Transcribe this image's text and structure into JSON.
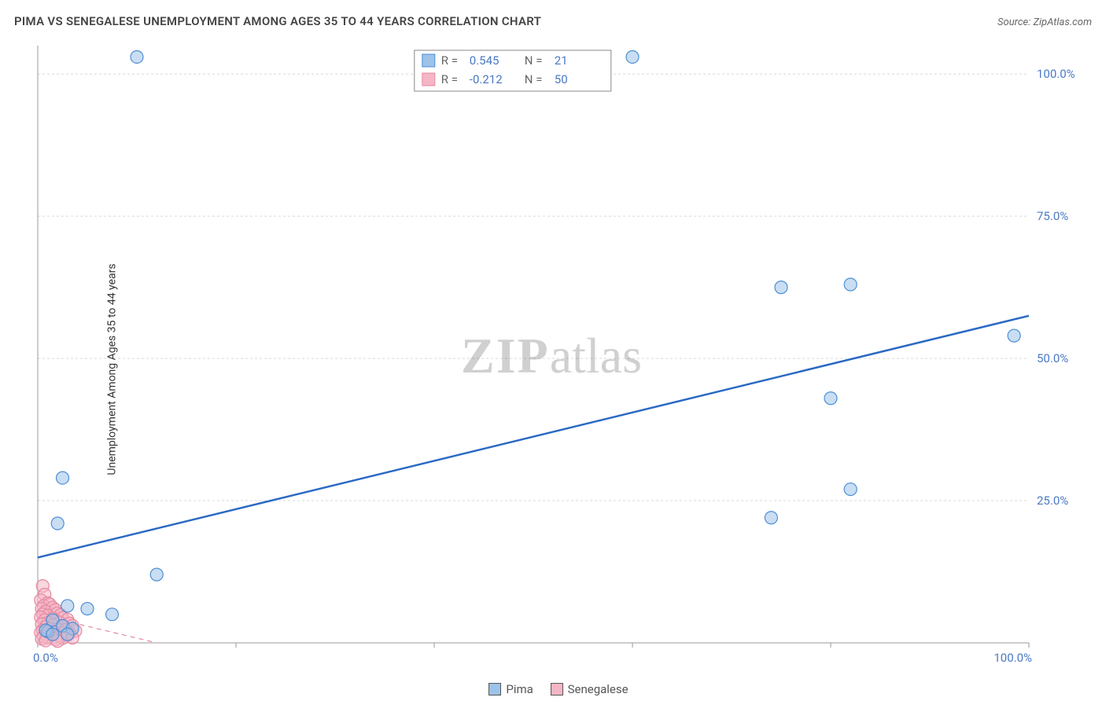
{
  "header": {
    "title": "PIMA VS SENEGALESE UNEMPLOYMENT AMONG AGES 35 TO 44 YEARS CORRELATION CHART",
    "source_prefix": "Source: ",
    "source_name": "ZipAtlas.com"
  },
  "watermark": {
    "zip": "ZIP",
    "rest": "atlas"
  },
  "chart": {
    "type": "scatter",
    "ylabel": "Unemployment Among Ages 35 to 44 years",
    "xlim": [
      0,
      100
    ],
    "ylim": [
      0,
      105
    ],
    "xtick_positions": [
      0,
      20,
      40,
      60,
      80,
      100
    ],
    "ytick_positions": [
      25,
      50,
      75,
      100
    ],
    "ytick_labels": [
      "25.0%",
      "50.0%",
      "75.0%",
      "100.0%"
    ],
    "xtick_labels_shown": {
      "0": "0.0%",
      "100": "100.0%"
    },
    "grid_color": "#d9d9d9",
    "background_color": "#ffffff",
    "marker_radius": 8,
    "series": [
      {
        "name": "Pima",
        "color_fill": "#9cc3e8",
        "color_stroke": "#4e8fd6",
        "R": "0.545",
        "N": "21",
        "points": [
          [
            10,
            103
          ],
          [
            60,
            103
          ],
          [
            75,
            62.5
          ],
          [
            82,
            63
          ],
          [
            98.5,
            54
          ],
          [
            80,
            43
          ],
          [
            82,
            27
          ],
          [
            74,
            22
          ],
          [
            2.5,
            29
          ],
          [
            2,
            21
          ],
          [
            12,
            12
          ],
          [
            3,
            6.5
          ],
          [
            5,
            6
          ],
          [
            7.5,
            5
          ],
          [
            1.5,
            4
          ],
          [
            2.5,
            3
          ],
          [
            3.5,
            2.5
          ],
          [
            1,
            2
          ],
          [
            0.8,
            2.2
          ],
          [
            1.5,
            1.5
          ],
          [
            3,
            1.5
          ]
        ],
        "regression": {
          "x1": 0,
          "y1": 15,
          "x2": 100,
          "y2": 57.5,
          "style": "solid",
          "width": 2.5
        }
      },
      {
        "name": "Senegalese",
        "color_fill": "#f4b6c5",
        "color_stroke": "#e688a1",
        "R": "-0.212",
        "N": "50",
        "points": [
          [
            0.5,
            10
          ],
          [
            0.7,
            8.5
          ],
          [
            0.3,
            7.5
          ],
          [
            1,
            7
          ],
          [
            0.6,
            6.5
          ],
          [
            1.2,
            6.8
          ],
          [
            0.4,
            6
          ],
          [
            1.5,
            6.2
          ],
          [
            0.8,
            5.5
          ],
          [
            1.8,
            5.8
          ],
          [
            0.5,
            5
          ],
          [
            2,
            5.2
          ],
          [
            1,
            4.8
          ],
          [
            2.3,
            4.9
          ],
          [
            0.3,
            4.5
          ],
          [
            1.5,
            4.3
          ],
          [
            2.5,
            4.4
          ],
          [
            0.7,
            4
          ],
          [
            1.8,
            3.9
          ],
          [
            3,
            4.1
          ],
          [
            1,
            3.5
          ],
          [
            2.2,
            3.6
          ],
          [
            0.4,
            3.3
          ],
          [
            3.2,
            3.4
          ],
          [
            1.5,
            3.1
          ],
          [
            2.6,
            2.9
          ],
          [
            0.8,
            2.8
          ],
          [
            3.5,
            3
          ],
          [
            1.2,
            2.5
          ],
          [
            2,
            2.4
          ],
          [
            0.5,
            2.2
          ],
          [
            2.8,
            2.3
          ],
          [
            1,
            2
          ],
          [
            3.8,
            2.1
          ],
          [
            0.3,
            1.8
          ],
          [
            1.7,
            1.9
          ],
          [
            2.5,
            1.7
          ],
          [
            0.9,
            1.5
          ],
          [
            3.2,
            1.6
          ],
          [
            1.4,
            1.3
          ],
          [
            2.2,
            1.2
          ],
          [
            0.6,
            1.1
          ],
          [
            3,
            1.3
          ],
          [
            1,
            0.9
          ],
          [
            2.5,
            0.8
          ],
          [
            0.4,
            0.7
          ],
          [
            1.8,
            0.6
          ],
          [
            3.5,
            0.9
          ],
          [
            0.8,
            0.4
          ],
          [
            2,
            0.3
          ]
        ],
        "regression": {
          "x1": 0,
          "y1": 5,
          "x2": 12,
          "y2": 0,
          "style": "dashed",
          "width": 1.2
        }
      }
    ],
    "stats_legend": {
      "R_label": "R =",
      "N_label": "N ="
    },
    "bottom_legend": [
      {
        "label": "Pima",
        "swatch": "b"
      },
      {
        "label": "Senegalese",
        "swatch": "p"
      }
    ]
  }
}
